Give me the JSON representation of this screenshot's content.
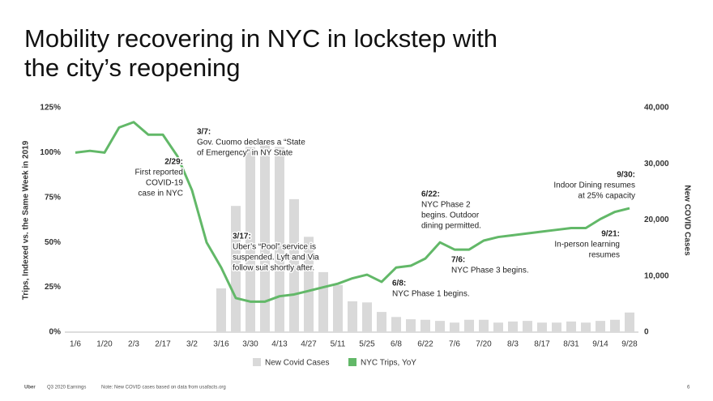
{
  "chart_data": {
    "type": "bar-line",
    "title": [
      "Mobility recovering in NYC in lockstep with",
      "the city’s reopening"
    ],
    "y_label": "Trips, Indexed vs. the Same Week in 2019",
    "y2_label": "New COVID Cases",
    "categories": [
      "1/6",
      null,
      "1/20",
      null,
      "2/3",
      null,
      "2/17",
      null,
      "3/2",
      null,
      "3/16",
      null,
      "3/30",
      null,
      "4/13",
      null,
      "4/27",
      null,
      "5/11",
      null,
      "5/25",
      null,
      "6/8",
      null,
      "6/22",
      null,
      "7/6",
      null,
      "7/20",
      null,
      "8/3",
      null,
      "8/17",
      null,
      "8/31",
      null,
      "9/14",
      null,
      "9/28"
    ],
    "series": [
      {
        "name": "New Covid Cases",
        "type": "bar",
        "axis": "y2",
        "color": "#d9d9d9",
        "values": [
          null,
          null,
          null,
          null,
          null,
          null,
          null,
          null,
          null,
          null,
          7800,
          22500,
          33000,
          34000,
          33000,
          23700,
          17000,
          10700,
          8400,
          5500,
          5300,
          3600,
          2700,
          2300,
          2200,
          2000,
          1700,
          2200,
          2200,
          1700,
          1900,
          2000,
          1700,
          1700,
          1900,
          1700,
          2000,
          2200,
          3500
        ]
      },
      {
        "name": "NYC Trips, YoY",
        "type": "line",
        "color": "#62b868",
        "values": [
          100,
          101,
          100,
          114,
          117,
          110,
          110,
          98,
          79,
          50,
          36,
          19,
          17,
          17,
          20,
          21,
          23,
          25,
          27,
          30,
          32,
          28,
          36,
          37,
          41,
          50,
          46,
          46,
          51,
          53,
          54,
          55,
          56,
          57,
          58,
          58,
          63,
          67,
          69
        ]
      }
    ],
    "ylim": [
      0,
      125
    ],
    "yticks": [
      {
        "value": 0,
        "label": "0%"
      },
      {
        "value": 25,
        "label": "25%"
      },
      {
        "value": 50,
        "label": "50%"
      },
      {
        "value": 75,
        "label": "75%"
      },
      {
        "value": 100,
        "label": "100%"
      },
      {
        "value": 125,
        "label": "125%"
      }
    ],
    "y2lim": [
      0,
      40000
    ],
    "y2ticks": [
      0,
      {
        "value": 10000,
        "label": "10,000"
      },
      {
        "value": 20000,
        "label": "20,000"
      },
      {
        "value": 30000,
        "label": "30,000"
      },
      {
        "value": 40000,
        "label": "40,000"
      }
    ],
    "legend": "bottom",
    "annotations": [
      {
        "label": "2/29:",
        "lines": [
          "First reported",
          "COVID-19",
          "case in NYC"
        ]
      },
      {
        "label": "3/7:",
        "lines": [
          "Gov. Cuomo declares a “State",
          "of Emergency” in NY State"
        ]
      },
      {
        "label": "3/17:",
        "lines": [
          "Uber’s “Pool” service is",
          "suspended. Lyft and Via",
          "follow suit shortly after."
        ]
      },
      {
        "label": "6/8:",
        "lines": [
          "NYC Phase 1 begins."
        ]
      },
      {
        "label": "6/22:",
        "lines": [
          "NYC Phase 2",
          "begins. Outdoor",
          "dining permitted."
        ]
      },
      {
        "label": "7/6:",
        "lines": [
          "NYC Phase 3 begins."
        ]
      },
      {
        "label": "9/30:",
        "lines": [
          "Indoor Dining resumes",
          "at 25% capacity"
        ]
      },
      {
        "label": "9/21:",
        "lines": [
          "In-person learning",
          "resumes"
        ]
      }
    ]
  },
  "footer": {
    "brand": "Uber",
    "report": "Q3 2020 Earnings",
    "note": "Note: New COVID cases based on data from usafacts.org",
    "page": "6"
  }
}
